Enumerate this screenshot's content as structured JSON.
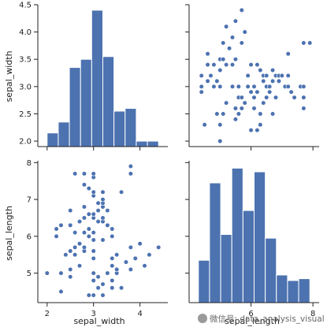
{
  "chart_data": {
    "type": "pairplot",
    "variables": [
      "sepal_width",
      "sepal_length"
    ],
    "bar_color": "#4c72b0",
    "point_color": "#4c72b0",
    "sepal_width_axis": {
      "ticks": [
        2.0,
        2.5,
        3.0,
        3.5,
        4.0,
        4.5
      ],
      "tick_labels": [
        "2.0",
        "2.5",
        "3.0",
        "3.5",
        "4.0",
        "4.5"
      ],
      "lim": [
        1.9,
        4.5
      ]
    },
    "sepal_width_x_axis": {
      "ticks": [
        2,
        3,
        4
      ],
      "tick_labels": [
        "2",
        "3",
        "4"
      ],
      "lim": [
        1.8,
        4.6
      ]
    },
    "sepal_length_axis": {
      "ticks": [
        5,
        6,
        7,
        8
      ],
      "tick_labels": [
        "5",
        "6",
        "7",
        "8"
      ],
      "lim": [
        4.2,
        8.05
      ]
    },
    "sepal_length_x_axis": {
      "ticks": [
        6,
        8
      ],
      "tick_labels": [
        "6",
        "8"
      ],
      "lim": [
        4.0,
        8.2
      ]
    },
    "hist_sepal_width": {
      "bin_edges": [
        2.0,
        2.24,
        2.48,
        2.72,
        2.96,
        3.2,
        3.44,
        3.68,
        3.92,
        4.16,
        4.4
      ],
      "bar_tops": [
        2.15,
        2.35,
        3.35,
        3.5,
        4.4,
        3.55,
        2.55,
        2.6,
        2.0,
        2.0
      ]
    },
    "hist_sepal_length": {
      "bin_edges": [
        4.3,
        4.66,
        5.02,
        5.38,
        5.74,
        6.1,
        6.46,
        6.82,
        7.18,
        7.54,
        7.9
      ],
      "bar_tops": [
        5.35,
        7.45,
        6.05,
        7.85,
        6.7,
        7.75,
        5.95,
        4.95,
        4.8,
        4.85
      ]
    },
    "scatter_length_vs_width": [
      [
        4.4,
        2.9
      ],
      [
        4.4,
        3.0
      ],
      [
        4.4,
        3.2
      ],
      [
        4.5,
        2.3
      ],
      [
        4.6,
        3.1
      ],
      [
        4.6,
        3.4
      ],
      [
        4.6,
        3.6
      ],
      [
        4.7,
        3.2
      ],
      [
        4.8,
        3.0
      ],
      [
        4.8,
        3.4
      ],
      [
        4.9,
        2.5
      ],
      [
        4.9,
        3.1
      ],
      [
        5.0,
        2.0
      ],
      [
        5.0,
        2.3
      ],
      [
        5.0,
        3.0
      ],
      [
        5.0,
        3.3
      ],
      [
        5.0,
        3.5
      ],
      [
        5.1,
        2.5
      ],
      [
        5.1,
        3.5
      ],
      [
        5.1,
        3.8
      ],
      [
        5.2,
        2.7
      ],
      [
        5.2,
        3.4
      ],
      [
        5.2,
        4.1
      ],
      [
        5.3,
        3.7
      ],
      [
        5.4,
        3.0
      ],
      [
        5.4,
        3.4
      ],
      [
        5.4,
        3.9
      ],
      [
        5.5,
        2.4
      ],
      [
        5.5,
        2.6
      ],
      [
        5.5,
        3.5
      ],
      [
        5.5,
        4.2
      ],
      [
        5.6,
        2.5
      ],
      [
        5.6,
        2.8
      ],
      [
        5.6,
        3.0
      ],
      [
        5.7,
        2.6
      ],
      [
        5.7,
        2.8
      ],
      [
        5.7,
        3.8
      ],
      [
        5.7,
        4.4
      ],
      [
        5.8,
        2.7
      ],
      [
        5.8,
        4.0
      ],
      [
        5.9,
        3.0
      ],
      [
        5.9,
        3.2
      ],
      [
        6.0,
        2.2
      ],
      [
        6.0,
        2.9
      ],
      [
        6.0,
        3.4
      ],
      [
        6.1,
        2.6
      ],
      [
        6.1,
        2.8
      ],
      [
        6.1,
        3.0
      ],
      [
        6.2,
        2.2
      ],
      [
        6.2,
        2.9
      ],
      [
        6.2,
        3.4
      ],
      [
        6.3,
        2.3
      ],
      [
        6.3,
        2.5
      ],
      [
        6.3,
        3.3
      ],
      [
        6.4,
        2.7
      ],
      [
        6.4,
        3.1
      ],
      [
        6.4,
        3.2
      ],
      [
        6.5,
        2.8
      ],
      [
        6.5,
        3.0
      ],
      [
        6.5,
        3.2
      ],
      [
        6.6,
        2.9
      ],
      [
        6.6,
        3.0
      ],
      [
        6.7,
        2.5
      ],
      [
        6.7,
        3.1
      ],
      [
        6.7,
        3.3
      ],
      [
        6.8,
        2.8
      ],
      [
        6.8,
        3.2
      ],
      [
        6.9,
        3.1
      ],
      [
        6.9,
        3.2
      ],
      [
        7.0,
        3.2
      ],
      [
        7.1,
        3.0
      ],
      [
        7.2,
        3.0
      ],
      [
        7.2,
        3.2
      ],
      [
        7.2,
        3.6
      ],
      [
        7.3,
        2.9
      ],
      [
        7.4,
        2.8
      ],
      [
        7.6,
        3.0
      ],
      [
        7.7,
        2.6
      ],
      [
        7.7,
        2.8
      ],
      [
        7.7,
        3.0
      ],
      [
        7.7,
        3.8
      ],
      [
        7.9,
        3.8
      ]
    ],
    "watermark": "微信号: data_analysis_visual"
  }
}
